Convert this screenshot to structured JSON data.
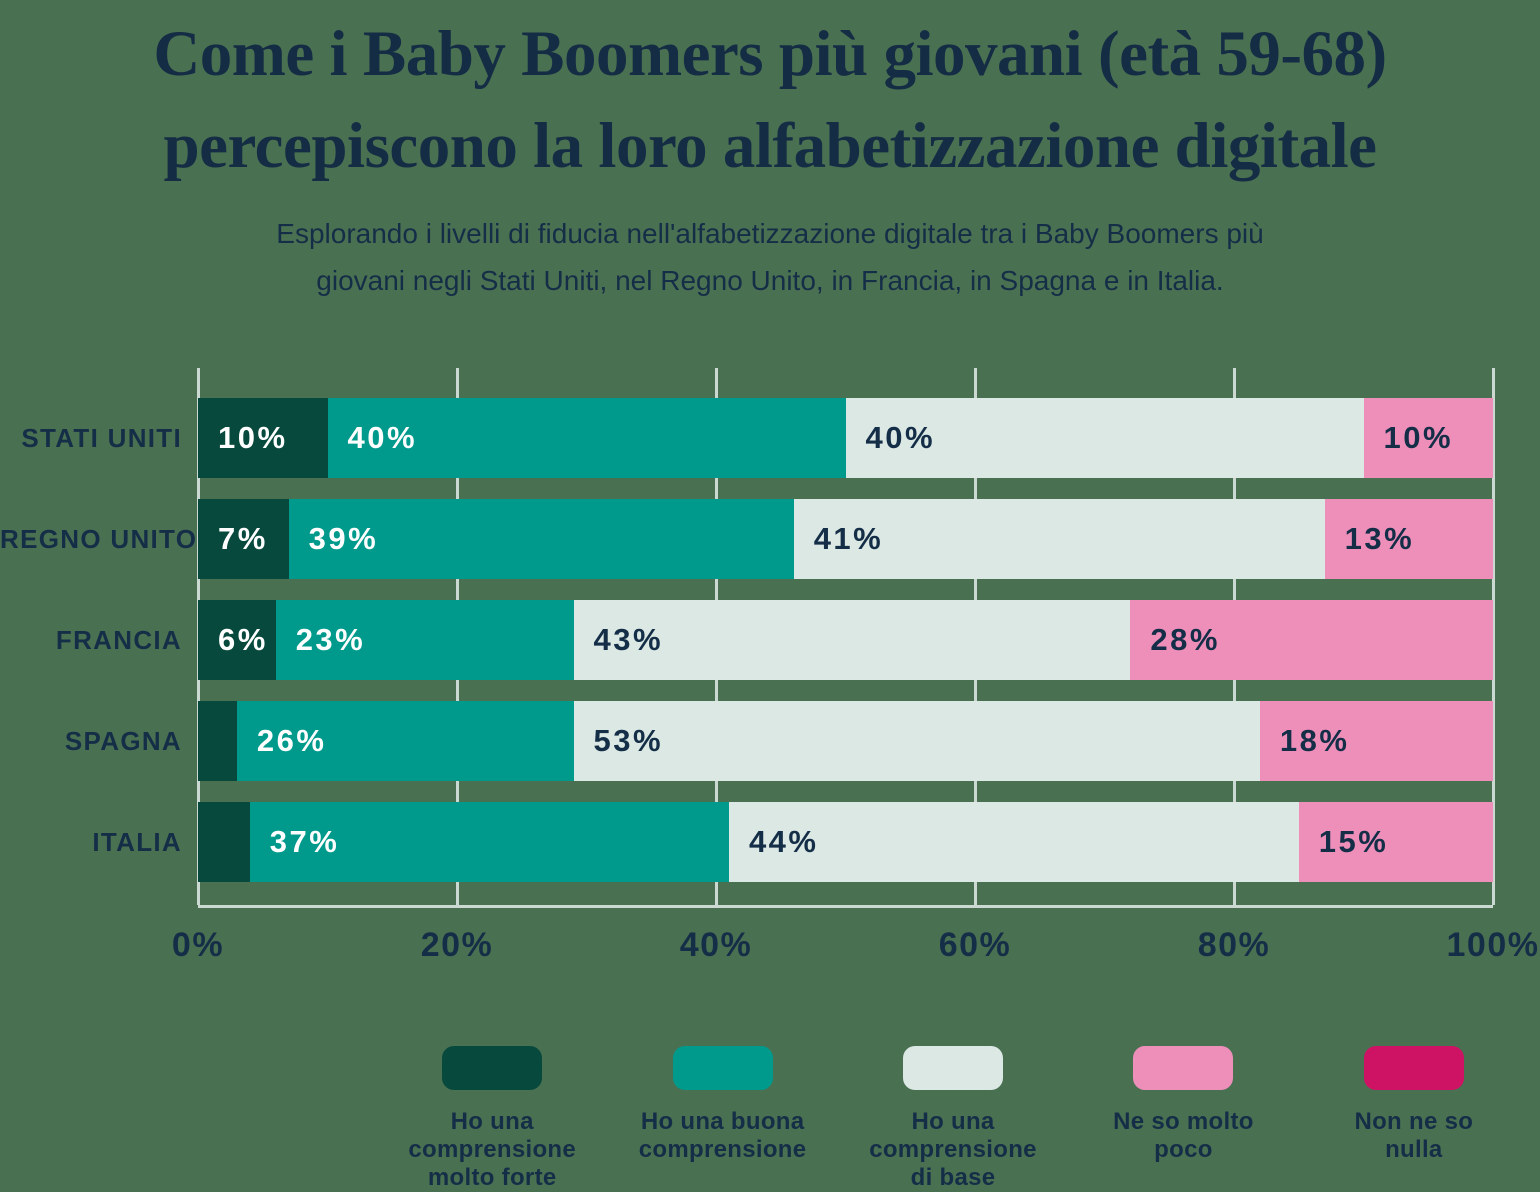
{
  "title": "Come i Baby Boomers più giovani (età 59-68)\npercepiscono la loro alfabetizzazione digitale",
  "subtitle": "Esplorando i livelli di fiducia nell'alfabetizzazione digitale tra i Baby Boomers più\ngiovani negli Stati Uniti, nel Regno Unito, in Francia, in Spagna e in Italia.",
  "colors": {
    "background": "#4a7052",
    "text_navy": "#152e47",
    "gridline": "#ccd8d2",
    "very_strong": "#07493c",
    "good": "#009a8c",
    "basic": "#dbe8e4",
    "little": "#ee8fba",
    "none": "#ce1365"
  },
  "chart_data": {
    "type": "bar",
    "orientation": "horizontal",
    "stacked": true,
    "title": "Come i Baby Boomers più giovani (età 59-68) percepiscono la loro alfabetizzazione digitale",
    "categories": [
      "STATI UNITI",
      "REGNO UNITO",
      "FRANCIA",
      "SPAGNA",
      "ITALIA"
    ],
    "series": [
      {
        "name": "Ho una comprensione molto forte",
        "color": "#07493c",
        "label_color": "#ffffff",
        "values": [
          10,
          7,
          6,
          3,
          4
        ]
      },
      {
        "name": "Ho una buona comprensione",
        "color": "#009a8c",
        "label_color": "#ffffff",
        "values": [
          40,
          39,
          23,
          26,
          37
        ]
      },
      {
        "name": "Ho una comprensione di base",
        "color": "#dbe8e4",
        "label_color": "#152e47",
        "values": [
          40,
          41,
          43,
          53,
          44
        ]
      },
      {
        "name": "Ne so molto poco",
        "color": "#ee8fba",
        "label_color": "#152e47",
        "values": [
          10,
          13,
          28,
          18,
          15
        ]
      },
      {
        "name": "Non ne so nulla",
        "color": "#ce1365",
        "label_color": "#ffffff",
        "values": [
          0,
          0,
          0,
          0,
          0
        ]
      }
    ],
    "value_label_suffix": "%",
    "value_label_min_pct": 5,
    "x_ticks": [
      "0%",
      "20%",
      "40%",
      "60%",
      "80%",
      "100%"
    ],
    "xlim": [
      0,
      100
    ],
    "grid": "vertical",
    "legend_position": "bottom"
  },
  "legend": {
    "items": [
      {
        "label": "Ho una comprensione\nmolto forte",
        "color": "#07493c"
      },
      {
        "label": "Ho una buona\ncomprensione",
        "color": "#009a8c"
      },
      {
        "label": "Ho una comprensione\ndi base",
        "color": "#dbe8e4"
      },
      {
        "label": "Ne so molto\npoco",
        "color": "#ee8fba"
      },
      {
        "label": "Non ne so\nnulla",
        "color": "#ce1365"
      }
    ]
  }
}
